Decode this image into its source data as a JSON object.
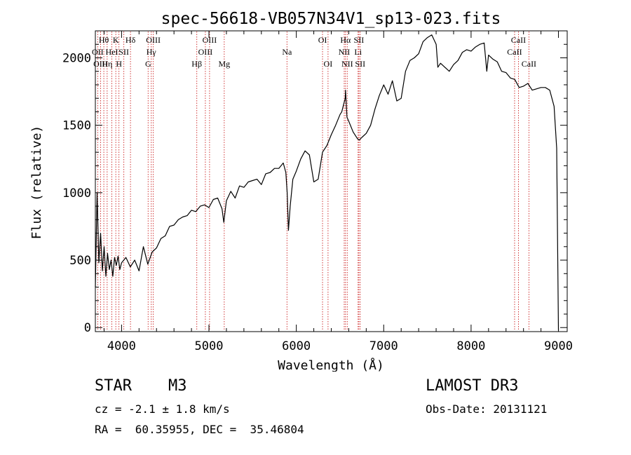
{
  "chart_data": {
    "type": "line",
    "title": "spec-56618-VB057N34V1_sp13-023.fits",
    "xlabel": "Wavelength (Å)",
    "ylabel": "Flux (relative)",
    "xlim": [
      3700,
      9100
    ],
    "ylim": [
      -30,
      2200
    ],
    "xticks": [
      4000,
      5000,
      6000,
      7000,
      8000,
      9000
    ],
    "yticks": [
      0,
      500,
      1000,
      1500,
      2000
    ],
    "grid": false,
    "series": [
      {
        "name": "spectrum",
        "x": [
          3700,
          3720,
          3740,
          3760,
          3780,
          3800,
          3820,
          3840,
          3860,
          3880,
          3900,
          3920,
          3940,
          3960,
          3980,
          4000,
          4050,
          4100,
          4150,
          4200,
          4250,
          4300,
          4350,
          4400,
          4450,
          4500,
          4550,
          4600,
          4650,
          4700,
          4750,
          4800,
          4850,
          4900,
          4950,
          5000,
          5050,
          5100,
          5150,
          5170,
          5200,
          5250,
          5300,
          5350,
          5400,
          5450,
          5500,
          5550,
          5600,
          5650,
          5700,
          5750,
          5800,
          5850,
          5880,
          5895,
          5910,
          5930,
          5960,
          6000,
          6050,
          6100,
          6150,
          6200,
          6250,
          6300,
          6350,
          6400,
          6450,
          6500,
          6520,
          6540,
          6560,
          6563,
          6580,
          6600,
          6650,
          6700,
          6720,
          6750,
          6800,
          6850,
          6900,
          6950,
          7000,
          7050,
          7100,
          7150,
          7200,
          7250,
          7300,
          7350,
          7400,
          7450,
          7500,
          7550,
          7600,
          7620,
          7650,
          7700,
          7750,
          7800,
          7850,
          7900,
          7950,
          8000,
          8050,
          8100,
          8150,
          8180,
          8200,
          8250,
          8300,
          8350,
          8400,
          8450,
          8500,
          8550,
          8600,
          8650,
          8700,
          8750,
          8800,
          8850,
          8900,
          8950,
          8980,
          9000
        ],
        "y": [
          300,
          1000,
          480,
          700,
          420,
          600,
          380,
          550,
          430,
          500,
          380,
          520,
          460,
          530,
          430,
          480,
          520,
          450,
          500,
          420,
          600,
          470,
          560,
          590,
          660,
          680,
          750,
          760,
          800,
          820,
          830,
          870,
          860,
          900,
          910,
          890,
          950,
          960,
          880,
          780,
          940,
          1010,
          960,
          1050,
          1040,
          1080,
          1090,
          1100,
          1060,
          1140,
          1150,
          1180,
          1180,
          1220,
          1150,
          1000,
          720,
          900,
          1100,
          1160,
          1250,
          1310,
          1280,
          1080,
          1100,
          1300,
          1350,
          1430,
          1500,
          1580,
          1600,
          1650,
          1700,
          1760,
          1560,
          1530,
          1450,
          1400,
          1390,
          1410,
          1440,
          1500,
          1620,
          1720,
          1800,
          1730,
          1830,
          1680,
          1700,
          1900,
          1980,
          2000,
          2030,
          2120,
          2150,
          2170,
          2100,
          1930,
          1960,
          1930,
          1900,
          1950,
          1980,
          2040,
          2060,
          2050,
          2080,
          2100,
          2110,
          1900,
          2020,
          1990,
          1970,
          1900,
          1890,
          1850,
          1840,
          1780,
          1790,
          1810,
          1760,
          1770,
          1780,
          1780,
          1760,
          1640,
          1330,
          -20
        ]
      }
    ],
    "lines": [
      {
        "x": 3727,
        "label": "OII",
        "row": 2
      },
      {
        "x": 3760,
        "label": "OIII",
        "row": 3
      },
      {
        "x": 3797,
        "label": "Hθ",
        "row": 1
      },
      {
        "x": 3835,
        "label": "Hη",
        "row": 3
      },
      {
        "x": 3889,
        "label": "HeI",
        "row": 2
      },
      {
        "x": 3934,
        "label": "K",
        "row": 1
      },
      {
        "x": 3970,
        "label": "H",
        "row": 3
      },
      {
        "x": 4026,
        "label": "SII",
        "row": 2
      },
      {
        "x": 4102,
        "label": "Hδ",
        "row": 1
      },
      {
        "x": 4304,
        "label": "G",
        "row": 3
      },
      {
        "x": 4340,
        "label": "Hγ",
        "row": 2
      },
      {
        "x": 4363,
        "label": "OIII",
        "row": 1
      },
      {
        "x": 4861,
        "label": "Hβ",
        "row": 3
      },
      {
        "x": 4959,
        "label": "OIII",
        "row": 2
      },
      {
        "x": 5007,
        "label": "OIII",
        "row": 1
      },
      {
        "x": 5175,
        "label": "Mg",
        "row": 3
      },
      {
        "x": 5893,
        "label": "Na",
        "row": 2
      },
      {
        "x": 6300,
        "label": "OI",
        "row": 1
      },
      {
        "x": 6363,
        "label": "OI",
        "row": 3
      },
      {
        "x": 6548,
        "label": "NII",
        "row": 2
      },
      {
        "x": 6563,
        "label": "Hα",
        "row": 1
      },
      {
        "x": 6583,
        "label": "NII",
        "row": 3
      },
      {
        "x": 6707,
        "label": "Li",
        "row": 2
      },
      {
        "x": 6716,
        "label": "SII",
        "row": 1
      },
      {
        "x": 6731,
        "label": "SII",
        "row": 3
      },
      {
        "x": 8498,
        "label": "CaII",
        "row": 2
      },
      {
        "x": 8542,
        "label": "CaII",
        "row": 1
      },
      {
        "x": 8662,
        "label": "CaII",
        "row": 3
      }
    ]
  },
  "info": {
    "class": "STAR",
    "subclass": "M3",
    "cz": "cz = -2.1 ± 1.8 km/s",
    "coords": "RA =  60.35955, DEC =  35.46804",
    "survey": "LAMOST DR3",
    "obs_date": "Obs-Date: 20131121"
  },
  "colors": {
    "line": "#000000",
    "marker": "#cc2222"
  }
}
